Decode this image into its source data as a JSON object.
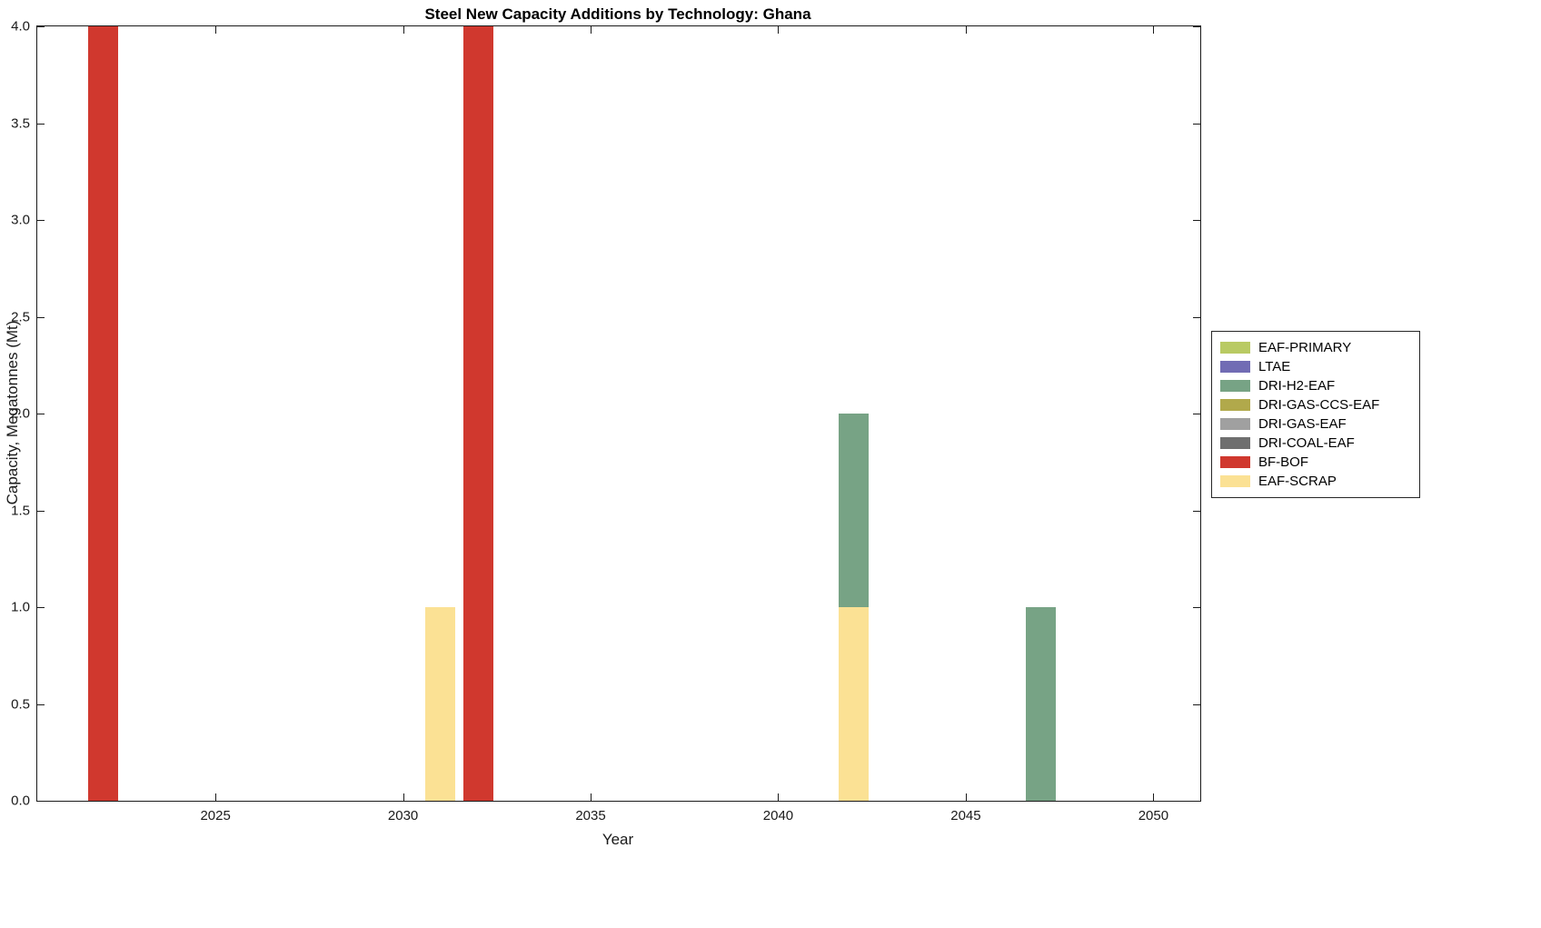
{
  "chart_data": {
    "type": "bar",
    "stacked": true,
    "title": "Steel New Capacity Additions by Technology: Ghana",
    "xlabel": "Year",
    "ylabel": "Capacity, Megatonnes (Mt)",
    "xlim": [
      2020.25,
      2051.25
    ],
    "ylim": [
      0,
      4
    ],
    "xticks": [
      2025,
      2030,
      2035,
      2040,
      2045,
      2050
    ],
    "xtick_labels": [
      "2025",
      "2030",
      "2035",
      "2040",
      "2045",
      "2050"
    ],
    "yticks": [
      0,
      0.5,
      1,
      1.5,
      2,
      2.5,
      3,
      3.5,
      4
    ],
    "ytick_labels": [
      "0.0",
      "0.5",
      "1.0",
      "1.5",
      "2.0",
      "2.5",
      "3.0",
      "3.5",
      "4.0"
    ],
    "bar_width_years": 0.8,
    "grid": false,
    "axis_color": "#1a1a1a",
    "legend": {
      "position": "outside-right",
      "entries": [
        {
          "label": "EAF-PRIMARY",
          "color": "#b9ca63"
        },
        {
          "label": "LTAE",
          "color": "#716cb4"
        },
        {
          "label": "DRI-H2-EAF",
          "color": "#77a385"
        },
        {
          "label": "DRI-GAS-CCS-EAF",
          "color": "#b1a94b"
        },
        {
          "label": "DRI-GAS-EAF",
          "color": "#a0a0a0"
        },
        {
          "label": "DRI-COAL-EAF",
          "color": "#6f6f6f"
        },
        {
          "label": "BF-BOF",
          "color": "#d0382e"
        },
        {
          "label": "EAF-SCRAP",
          "color": "#fbe194"
        }
      ]
    },
    "bars": [
      {
        "year": 2022,
        "segments": [
          {
            "tech": "BF-BOF",
            "value": 4
          }
        ]
      },
      {
        "year": 2031,
        "segments": [
          {
            "tech": "EAF-SCRAP",
            "value": 1
          }
        ]
      },
      {
        "year": 2032,
        "segments": [
          {
            "tech": "BF-BOF",
            "value": 4
          }
        ]
      },
      {
        "year": 2042,
        "segments": [
          {
            "tech": "EAF-SCRAP",
            "value": 1
          },
          {
            "tech": "DRI-H2-EAF",
            "value": 1
          }
        ]
      },
      {
        "year": 2047,
        "segments": [
          {
            "tech": "DRI-H2-EAF",
            "value": 1
          }
        ]
      }
    ]
  }
}
